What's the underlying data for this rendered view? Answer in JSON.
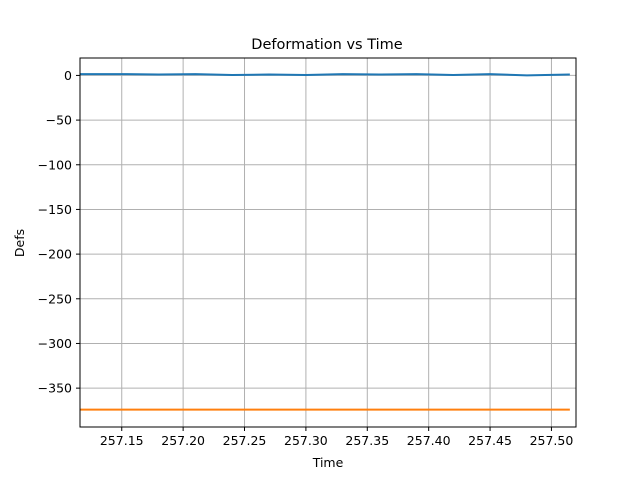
{
  "chart_data": {
    "type": "line",
    "title": "Deformation vs Time",
    "xlabel": "Time",
    "ylabel": "Defs",
    "xlim": [
      257.116,
      257.52
    ],
    "ylim": [
      -393.5,
      19.5
    ],
    "grid": true,
    "x_ticks": [
      257.15,
      257.2,
      257.25,
      257.3,
      257.35,
      257.4,
      257.45,
      257.5
    ],
    "x_tick_labels": [
      "257.15",
      "257.20",
      "257.25",
      "257.30",
      "257.35",
      "257.40",
      "257.45",
      "257.50"
    ],
    "y_ticks": [
      0,
      -50,
      -100,
      -150,
      -200,
      -250,
      -300,
      -350
    ],
    "y_tick_labels": [
      "0",
      "−50",
      "−100",
      "−150",
      "−200",
      "−250",
      "−300",
      "−350"
    ],
    "series": [
      {
        "color": "#1f77b4",
        "x": [
          257.116,
          257.15,
          257.18,
          257.21,
          257.24,
          257.27,
          257.3,
          257.33,
          257.36,
          257.39,
          257.42,
          257.45,
          257.48,
          257.515
        ],
        "values": [
          1.5,
          1.5,
          1.0,
          1.5,
          0.5,
          1.0,
          0.5,
          1.5,
          1.0,
          1.5,
          0.5,
          1.5,
          0.0,
          1.0
        ]
      },
      {
        "color": "#ff7f0e",
        "x": [
          257.116,
          257.515
        ],
        "values": [
          -374.0,
          -374.0
        ]
      }
    ]
  }
}
